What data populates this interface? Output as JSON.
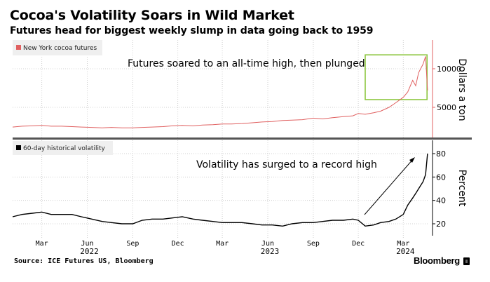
{
  "header": {
    "title": "Cocoa's Volatility Soars in Wild Market",
    "subtitle": "Futures head for biggest weekly slump in data going back to 1959"
  },
  "footer": {
    "source": "Source: ICE Futures US, Bloomberg",
    "brand": "Bloomberg"
  },
  "colors": {
    "futures": "#e06060",
    "volatility": "#000000",
    "highlight_box": "#8cc63f",
    "axis_top": "#e06060",
    "divider": "#555555"
  },
  "chart_data": [
    {
      "type": "line",
      "title": "New York cocoa futures",
      "legend": "New York cocoa futures",
      "legend_position": "top-left",
      "ylabel": "Dollars a ton",
      "yticks": [
        5000,
        10000
      ],
      "ylim": [
        2000,
        12500
      ],
      "annotation": "Futures soared to an all-time high, then plunged",
      "highlight": {
        "x_range": [
          "2023-12-15",
          "2024-04-18"
        ],
        "y_range": [
          6000,
          11800
        ]
      },
      "x": [
        "2022-01-01",
        "2022-01-20",
        "2022-02-10",
        "2022-03-01",
        "2022-03-20",
        "2022-04-10",
        "2022-05-01",
        "2022-05-20",
        "2022-06-10",
        "2022-07-01",
        "2022-07-20",
        "2022-08-10",
        "2022-09-01",
        "2022-09-20",
        "2022-10-10",
        "2022-11-01",
        "2022-11-20",
        "2022-12-10",
        "2023-01-01",
        "2023-01-20",
        "2023-02-10",
        "2023-03-01",
        "2023-03-20",
        "2023-04-10",
        "2023-05-01",
        "2023-05-20",
        "2023-06-10",
        "2023-07-01",
        "2023-07-20",
        "2023-08-10",
        "2023-09-01",
        "2023-09-20",
        "2023-10-10",
        "2023-11-01",
        "2023-11-20",
        "2023-12-01",
        "2023-12-15",
        "2024-01-01",
        "2024-01-15",
        "2024-02-01",
        "2024-02-15",
        "2024-03-01",
        "2024-03-10",
        "2024-03-20",
        "2024-03-26",
        "2024-04-01",
        "2024-04-10",
        "2024-04-15",
        "2024-04-19"
      ],
      "values": [
        2450,
        2550,
        2600,
        2650,
        2550,
        2550,
        2500,
        2450,
        2400,
        2350,
        2400,
        2350,
        2350,
        2400,
        2450,
        2500,
        2600,
        2650,
        2600,
        2700,
        2750,
        2850,
        2850,
        2900,
        3000,
        3100,
        3150,
        3300,
        3350,
        3400,
        3600,
        3500,
        3650,
        3800,
        3900,
        4200,
        4100,
        4300,
        4500,
        5000,
        5600,
        6300,
        7000,
        8500,
        7800,
        9500,
        10600,
        11600,
        7200
      ]
    },
    {
      "type": "line",
      "title": "60-day historical volatility",
      "legend": "60-day historical volatility",
      "legend_position": "top-left",
      "ylabel": "Percent",
      "yticks": [
        20,
        40,
        60,
        80
      ],
      "ylim": [
        12,
        88
      ],
      "annotation": "Volatility has surged to a record high",
      "x": [
        "2022-01-01",
        "2022-01-20",
        "2022-02-10",
        "2022-03-01",
        "2022-03-20",
        "2022-04-10",
        "2022-05-01",
        "2022-05-20",
        "2022-06-10",
        "2022-07-01",
        "2022-07-20",
        "2022-08-10",
        "2022-09-01",
        "2022-09-20",
        "2022-10-10",
        "2022-11-01",
        "2022-11-20",
        "2022-12-10",
        "2023-01-01",
        "2023-01-20",
        "2023-02-10",
        "2023-03-01",
        "2023-03-20",
        "2023-04-10",
        "2023-05-01",
        "2023-05-20",
        "2023-06-10",
        "2023-07-01",
        "2023-07-20",
        "2023-08-10",
        "2023-09-01",
        "2023-09-20",
        "2023-10-10",
        "2023-11-01",
        "2023-11-20",
        "2023-12-01",
        "2023-12-15",
        "2024-01-01",
        "2024-01-15",
        "2024-02-01",
        "2024-02-15",
        "2024-03-01",
        "2024-03-10",
        "2024-03-20",
        "2024-03-26",
        "2024-04-01",
        "2024-04-10",
        "2024-04-15",
        "2024-04-19"
      ],
      "values": [
        26,
        28,
        29,
        30,
        28,
        28,
        28,
        26,
        24,
        22,
        21,
        20,
        20,
        23,
        24,
        24,
        25,
        26,
        24,
        23,
        22,
        21,
        21,
        21,
        20,
        19,
        19,
        18,
        20,
        21,
        21,
        22,
        23,
        23,
        24,
        23,
        18,
        19,
        21,
        22,
        24,
        28,
        36,
        42,
        46,
        50,
        56,
        62,
        80
      ]
    }
  ],
  "x_axis": {
    "ticks": [
      {
        "label": "Mar",
        "date": "2022-03-01"
      },
      {
        "label": "Jun",
        "date": "2022-06-01"
      },
      {
        "label": "Sep",
        "date": "2022-09-01"
      },
      {
        "label": "Dec",
        "date": "2022-12-01"
      },
      {
        "label": "Mar",
        "date": "2023-03-01"
      },
      {
        "label": "Jun",
        "date": "2023-06-01"
      },
      {
        "label": "Sep",
        "date": "2023-09-01"
      },
      {
        "label": "Dec",
        "date": "2023-12-01"
      },
      {
        "label": "Mar",
        "date": "2024-03-01"
      }
    ],
    "years": [
      {
        "label": "2022",
        "date": "2022-06-01"
      },
      {
        "label": "2023",
        "date": "2023-06-01"
      },
      {
        "label": "2024",
        "date": "2024-03-01"
      }
    ],
    "range": [
      "2022-01-01",
      "2024-04-22"
    ]
  }
}
